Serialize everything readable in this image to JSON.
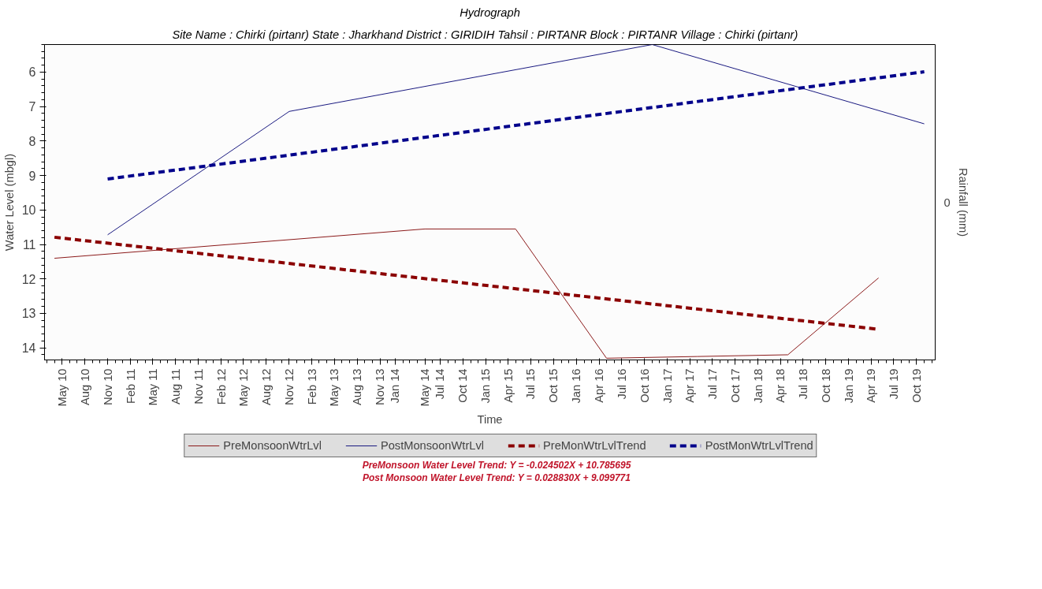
{
  "chart_data": {
    "type": "line",
    "title": "Hydrograph",
    "subtitle": "Site Name : Chirki (pirtanr)  State : Jharkhand District : GIRIDIH  Tahsil : PIRTANR  Block : PIRTANR Village : Chirki (pirtanr)",
    "xlabel": "Time",
    "ylabel": "Water Level (mbgl)",
    "y2label": "Rainfall (mm)",
    "xlim": [
      "2010-02-20",
      "2019-12-15"
    ],
    "ylim": [
      14.35,
      5.2
    ],
    "xticks": [
      {
        "value": "2010-05",
        "label": "May 10"
      },
      {
        "value": "2010-08",
        "label": "Aug 10"
      },
      {
        "value": "2010-11",
        "label": "Nov 10"
      },
      {
        "value": "2011-02",
        "label": "Feb 11"
      },
      {
        "value": "2011-05",
        "label": "May 11"
      },
      {
        "value": "2011-08",
        "label": "Aug 11"
      },
      {
        "value": "2011-11",
        "label": "Nov 11"
      },
      {
        "value": "2012-02",
        "label": "Feb 12"
      },
      {
        "value": "2012-05",
        "label": "May 12"
      },
      {
        "value": "2012-08",
        "label": "Aug 12"
      },
      {
        "value": "2012-11",
        "label": "Nov 12"
      },
      {
        "value": "2013-02",
        "label": "Feb 13"
      },
      {
        "value": "2013-05",
        "label": "May 13"
      },
      {
        "value": "2013-08",
        "label": "Aug 13"
      },
      {
        "value": "2013-11",
        "label": "Nov 13"
      },
      {
        "value": "2014-01",
        "label": "Jan 14"
      },
      {
        "value": "2014-05",
        "label": "May 14"
      },
      {
        "value": "2014-07",
        "label": "Jul 14"
      },
      {
        "value": "2014-10",
        "label": "Oct 14"
      },
      {
        "value": "2015-01",
        "label": "Jan 15"
      },
      {
        "value": "2015-04",
        "label": "Apr 15"
      },
      {
        "value": "2015-07",
        "label": "Jul 15"
      },
      {
        "value": "2015-10",
        "label": "Oct 15"
      },
      {
        "value": "2016-01",
        "label": "Jan 16"
      },
      {
        "value": "2016-04",
        "label": "Apr 16"
      },
      {
        "value": "2016-07",
        "label": "Jul 16"
      },
      {
        "value": "2016-10",
        "label": "Oct 16"
      },
      {
        "value": "2017-01",
        "label": "Jan 17"
      },
      {
        "value": "2017-04",
        "label": "Apr 17"
      },
      {
        "value": "2017-07",
        "label": "Jul 17"
      },
      {
        "value": "2017-10",
        "label": "Oct 17"
      },
      {
        "value": "2018-01",
        "label": "Jan 18"
      },
      {
        "value": "2018-04",
        "label": "Apr 18"
      },
      {
        "value": "2018-07",
        "label": "Jul 18"
      },
      {
        "value": "2018-10",
        "label": "Oct 18"
      },
      {
        "value": "2019-01",
        "label": "Jan 19"
      },
      {
        "value": "2019-04",
        "label": "Apr 19"
      },
      {
        "value": "2019-07",
        "label": "Jul 19"
      },
      {
        "value": "2019-10",
        "label": "Oct 19"
      }
    ],
    "yticks": [
      6,
      7,
      8,
      9,
      10,
      11,
      12,
      13,
      14
    ],
    "grid": false,
    "legend": "bottom",
    "series": [
      {
        "name": "PreMonsoonWtrLvl",
        "color": "#8b1a1a",
        "line_style": "solid",
        "x": [
          "2010-04",
          "2014-05",
          "2015-05",
          "2016-05",
          "2017-05",
          "2018-05",
          "2019-05"
        ],
        "values": [
          11.4,
          10.55,
          10.55,
          14.3,
          14.25,
          14.2,
          11.97
        ]
      },
      {
        "name": "PostMonsoonWtrLvl",
        "color": "#1a1a80",
        "line_style": "solid",
        "x": [
          "2010-11",
          "2012-11",
          "2016-11",
          "2019-11"
        ],
        "values": [
          10.72,
          7.14,
          5.2,
          7.5
        ]
      },
      {
        "name": "PreMonWtrLvlTrend",
        "color": "#8b0000",
        "line_style": "dashed",
        "x": [
          "2010-04",
          "2019-05"
        ],
        "values": [
          10.79,
          13.46
        ]
      },
      {
        "name": "PostMonWtrLvlTrend",
        "color": "#00008b",
        "line_style": "dashed",
        "x": [
          "2010-11",
          "2019-11"
        ],
        "values": [
          9.1,
          5.99
        ]
      }
    ],
    "annotations": [
      {
        "text": "0"
      },
      "PreMonsoon Water Level Trend: Y = -0.024502X + 10.785695",
      "Post Monsoon Water Level Trend: Y = 0.028830X + 9.099771"
    ]
  }
}
